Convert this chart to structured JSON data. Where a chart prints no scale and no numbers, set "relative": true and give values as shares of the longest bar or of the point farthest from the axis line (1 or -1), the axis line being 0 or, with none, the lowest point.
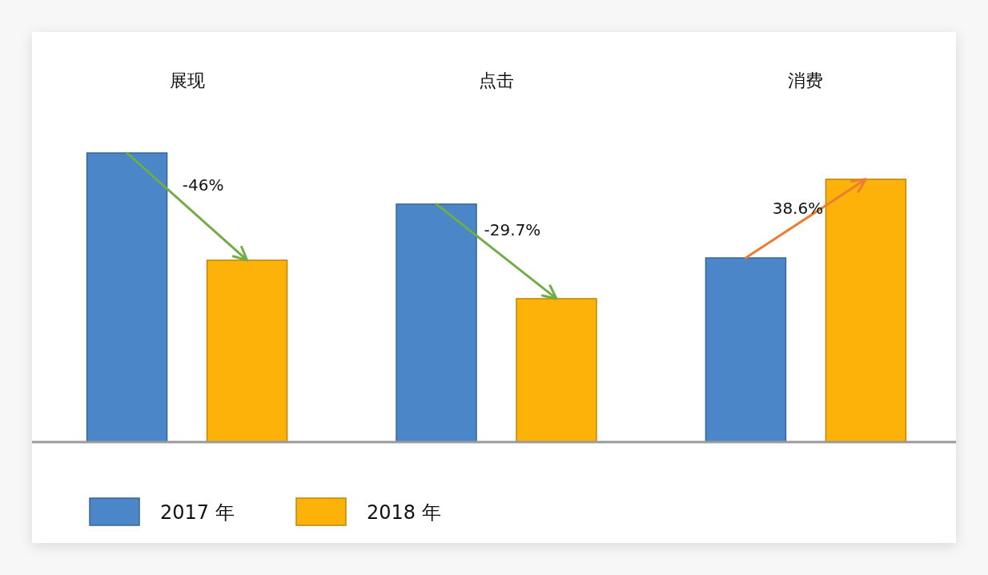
{
  "chart_data": {
    "type": "bar",
    "relative": true,
    "categories": [
      "展现",
      "点击",
      "消费"
    ],
    "series": [
      {
        "name": "2017 年",
        "color": "#4a86c8",
        "values": [
          1,
          0.823,
          0.637
        ]
      },
      {
        "name": "2018 年",
        "color": "#fdb20a",
        "values": [
          0.629,
          0.496,
          0.909
        ]
      }
    ],
    "annotations": [
      "-46%",
      "-29.7%",
      "38.6%"
    ],
    "legend": "bottom left"
  }
}
